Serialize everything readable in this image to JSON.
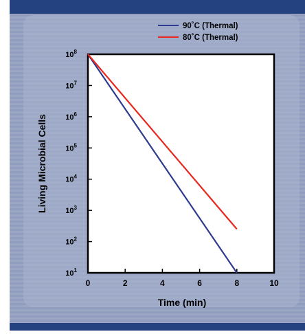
{
  "colors": {
    "frame_dark": "#24427f",
    "panel_light": "#9fabc8",
    "panel_mid": "#8593b6",
    "plot_bg": "#ffffff",
    "axis": "#000000"
  },
  "chart_data": {
    "type": "line",
    "title": "",
    "xlabel": "Time (min)",
    "ylabel": "Living Microbial Cells",
    "xlim": [
      0,
      10
    ],
    "ylim": [
      1,
      8
    ],
    "y_scale": "log",
    "x_ticks": [
      "0",
      "2",
      "4",
      "6",
      "8",
      "10"
    ],
    "y_ticks": [
      {
        "base": "10",
        "exp": "1"
      },
      {
        "base": "10",
        "exp": "2"
      },
      {
        "base": "10",
        "exp": "3"
      },
      {
        "base": "10",
        "exp": "4"
      },
      {
        "base": "10",
        "exp": "5"
      },
      {
        "base": "10",
        "exp": "6"
      },
      {
        "base": "10",
        "exp": "7"
      },
      {
        "base": "10",
        "exp": "8"
      }
    ],
    "grid": false,
    "legend": "top-right",
    "series": [
      {
        "name": "90˚C (Thermal)",
        "color": "#2e3b8f",
        "x": [
          0,
          8
        ],
        "log10_y": [
          8,
          1
        ]
      },
      {
        "name": "80˚C (Thermal)",
        "color": "#e8271f",
        "x": [
          0,
          8
        ],
        "log10_y": [
          8,
          2.4
        ]
      }
    ]
  }
}
